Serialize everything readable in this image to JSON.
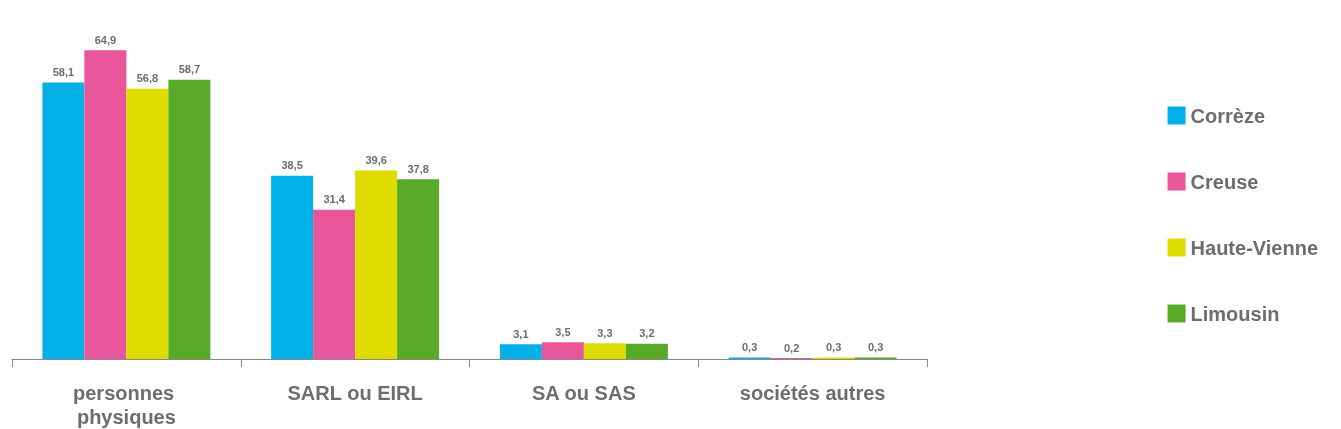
{
  "chart_data": {
    "type": "bar",
    "categories": [
      "personnes physiques",
      "SARL ou EIRL",
      "SA ou SAS",
      "sociétés autres"
    ],
    "series": [
      {
        "name": "Corrèze",
        "color": "#00b0e6",
        "values": [
          58.1,
          38.5,
          3.1,
          0.3
        ],
        "value_labels": [
          "58,1",
          "38,5",
          "3,1",
          "0,3"
        ]
      },
      {
        "name": "Creuse",
        "color": "#e8559a",
        "values": [
          64.9,
          31.4,
          3.5,
          0.2
        ],
        "value_labels": [
          "64,9",
          "31,4",
          "3,5",
          "0,2"
        ]
      },
      {
        "name": "Haute-Vienne",
        "color": "#dedc00",
        "values": [
          56.8,
          39.6,
          3.3,
          0.3
        ],
        "value_labels": [
          "56,8",
          "39,6",
          "3,3",
          "0,3"
        ]
      },
      {
        "name": "Limousin",
        "color": "#5aaa2a",
        "values": [
          58.7,
          37.8,
          3.2,
          0.3
        ],
        "value_labels": [
          "58,7",
          "37,8",
          "3,2",
          "0,3"
        ]
      }
    ],
    "legend": "right"
  }
}
